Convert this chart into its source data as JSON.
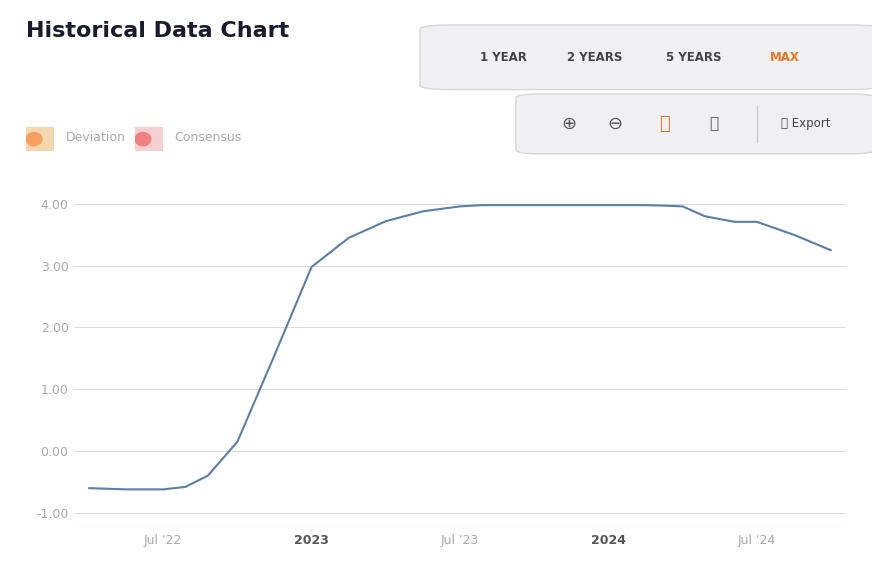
{
  "title": "Historical Data Chart",
  "title_fontsize": 16,
  "title_fontweight": "bold",
  "title_color": "#1a1a2e",
  "background_color": "#ffffff",
  "plot_bg_color": "#ffffff",
  "line_color": "#5a7fa8",
  "line_width": 1.5,
  "y_ticks": [
    -1.0,
    0.0,
    1.0,
    2.0,
    3.0,
    4.0
  ],
  "ylim": [
    -1.25,
    4.45
  ],
  "xlim": [
    -0.2,
    10.2
  ],
  "grid_color": "#d8d8e0",
  "grid_linewidth": 0.7,
  "legend_deviation_color": "#f5cfa0",
  "legend_consensus_color": "#f5b8b8",
  "legend_label1": "Deviation",
  "legend_label2": "Consensus",
  "legend_fontsize": 9,
  "legend_text_color": "#aaaaaa",
  "axis_label_color": "#aaaaaa",
  "axis_label_fontsize": 9,
  "data_x": [
    0.0,
    0.5,
    1.0,
    1.3,
    1.6,
    2.0,
    2.5,
    3.0,
    3.5,
    4.0,
    4.5,
    5.0,
    5.3,
    5.7,
    6.0,
    6.5,
    7.0,
    7.5,
    7.8,
    8.0,
    8.3,
    8.7,
    9.0,
    9.5,
    10.0
  ],
  "data_y": [
    -0.6,
    -0.62,
    -0.62,
    -0.58,
    -0.4,
    0.15,
    1.55,
    2.98,
    3.45,
    3.72,
    3.88,
    3.96,
    3.98,
    3.98,
    3.98,
    3.98,
    3.98,
    3.98,
    3.97,
    3.96,
    3.8,
    3.71,
    3.71,
    3.5,
    3.25
  ],
  "tab_labels": [
    "1 YEAR",
    "2 YEARS",
    "5 YEARS",
    "MAX"
  ],
  "tab_active": "MAX",
  "tab_active_color": "#e87722",
  "tab_inactive_color": "#444444",
  "tab_bg_color": "#f0f0f3",
  "tab_border_color": "#d8d8d8",
  "tool_bg_color": "#f0f0f3",
  "tool_border_color": "#d8d8d8"
}
